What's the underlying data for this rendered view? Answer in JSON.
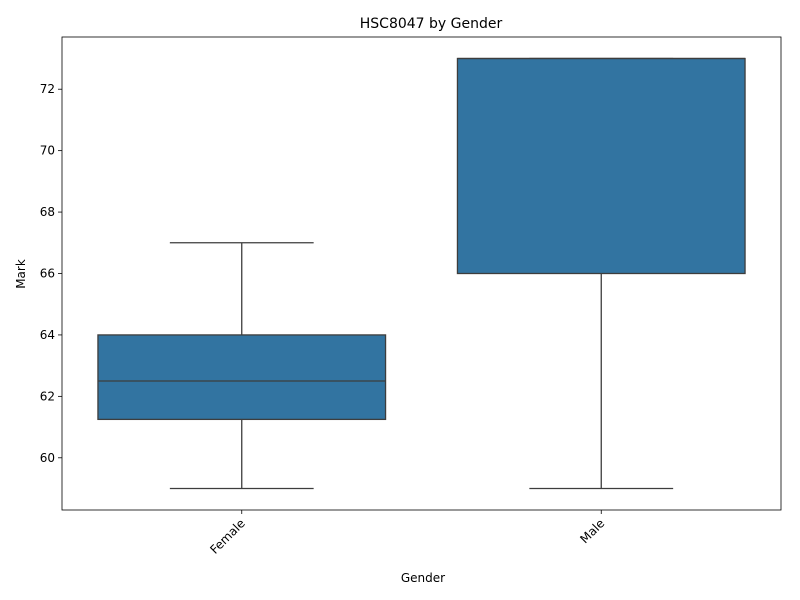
{
  "chart_data": {
    "type": "box",
    "title": "HSC8047 by Gender",
    "xlabel": "Gender",
    "ylabel": "Mark",
    "ylim": [
      58.3,
      73.7
    ],
    "yticks": [
      60,
      62,
      64,
      66,
      68,
      70,
      72
    ],
    "grid": false,
    "categories": [
      "Female",
      "Male"
    ],
    "boxes": [
      {
        "category": "Female",
        "whisker_low": 59,
        "q1": 61.25,
        "median": 62.5,
        "q3": 64,
        "whisker_high": 67
      },
      {
        "category": "Male",
        "whisker_low": 59,
        "q1": 66,
        "median": 73,
        "q3": 73,
        "whisker_high": 73
      }
    ],
    "colors": {
      "box_fill": "#3274a1",
      "line": "#3d3d3d",
      "axis": "#000000"
    }
  }
}
